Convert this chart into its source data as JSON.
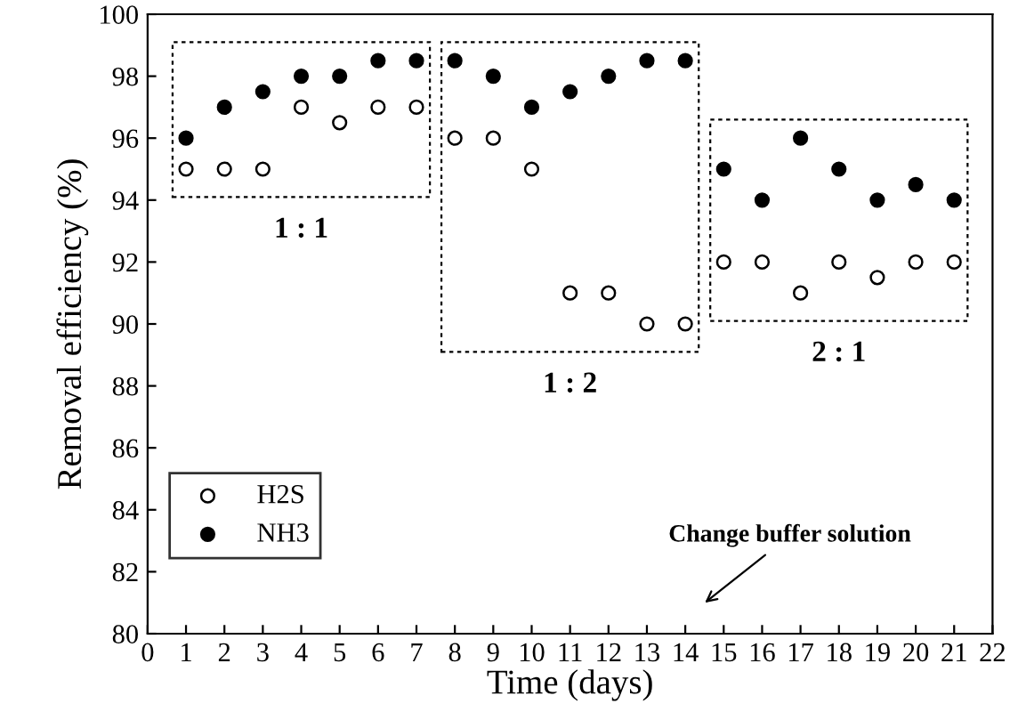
{
  "chart_data": {
    "type": "scatter",
    "xlabel": "Time (days)",
    "ylabel": "Removal efficiency (%)",
    "x": [
      1,
      2,
      3,
      4,
      5,
      6,
      7,
      8,
      9,
      10,
      11,
      12,
      13,
      14,
      15,
      16,
      17,
      18,
      19,
      20,
      21
    ],
    "series": [
      {
        "name": "H2S",
        "color": "#ffffff",
        "values": [
          95,
          95,
          95,
          97,
          96.5,
          97,
          97,
          96,
          96,
          95,
          91,
          91,
          90,
          90,
          92,
          92,
          91,
          92,
          91.5,
          92,
          92
        ]
      },
      {
        "name": "NH3",
        "color": "#000000",
        "values": [
          96,
          97,
          97.5,
          98,
          98,
          98.5,
          98.5,
          98.5,
          98,
          97,
          97.5,
          98,
          98.5,
          98.5,
          95,
          94,
          96,
          95,
          94,
          94.5,
          94
        ]
      }
    ],
    "xlim": [
      0,
      22
    ],
    "xticks": [
      0,
      1,
      2,
      3,
      4,
      5,
      6,
      7,
      8,
      9,
      10,
      11,
      12,
      13,
      14,
      15,
      16,
      17,
      18,
      19,
      20,
      21,
      22
    ],
    "ylim": [
      80,
      100
    ],
    "yticks": [
      80,
      82,
      84,
      86,
      88,
      90,
      92,
      94,
      96,
      98,
      100
    ],
    "marker": "circle",
    "grid": false,
    "legend": "bottom left",
    "annotations": [
      "1 : 1",
      "1 : 2",
      "2 : 1",
      "Change buffer solution"
    ]
  }
}
